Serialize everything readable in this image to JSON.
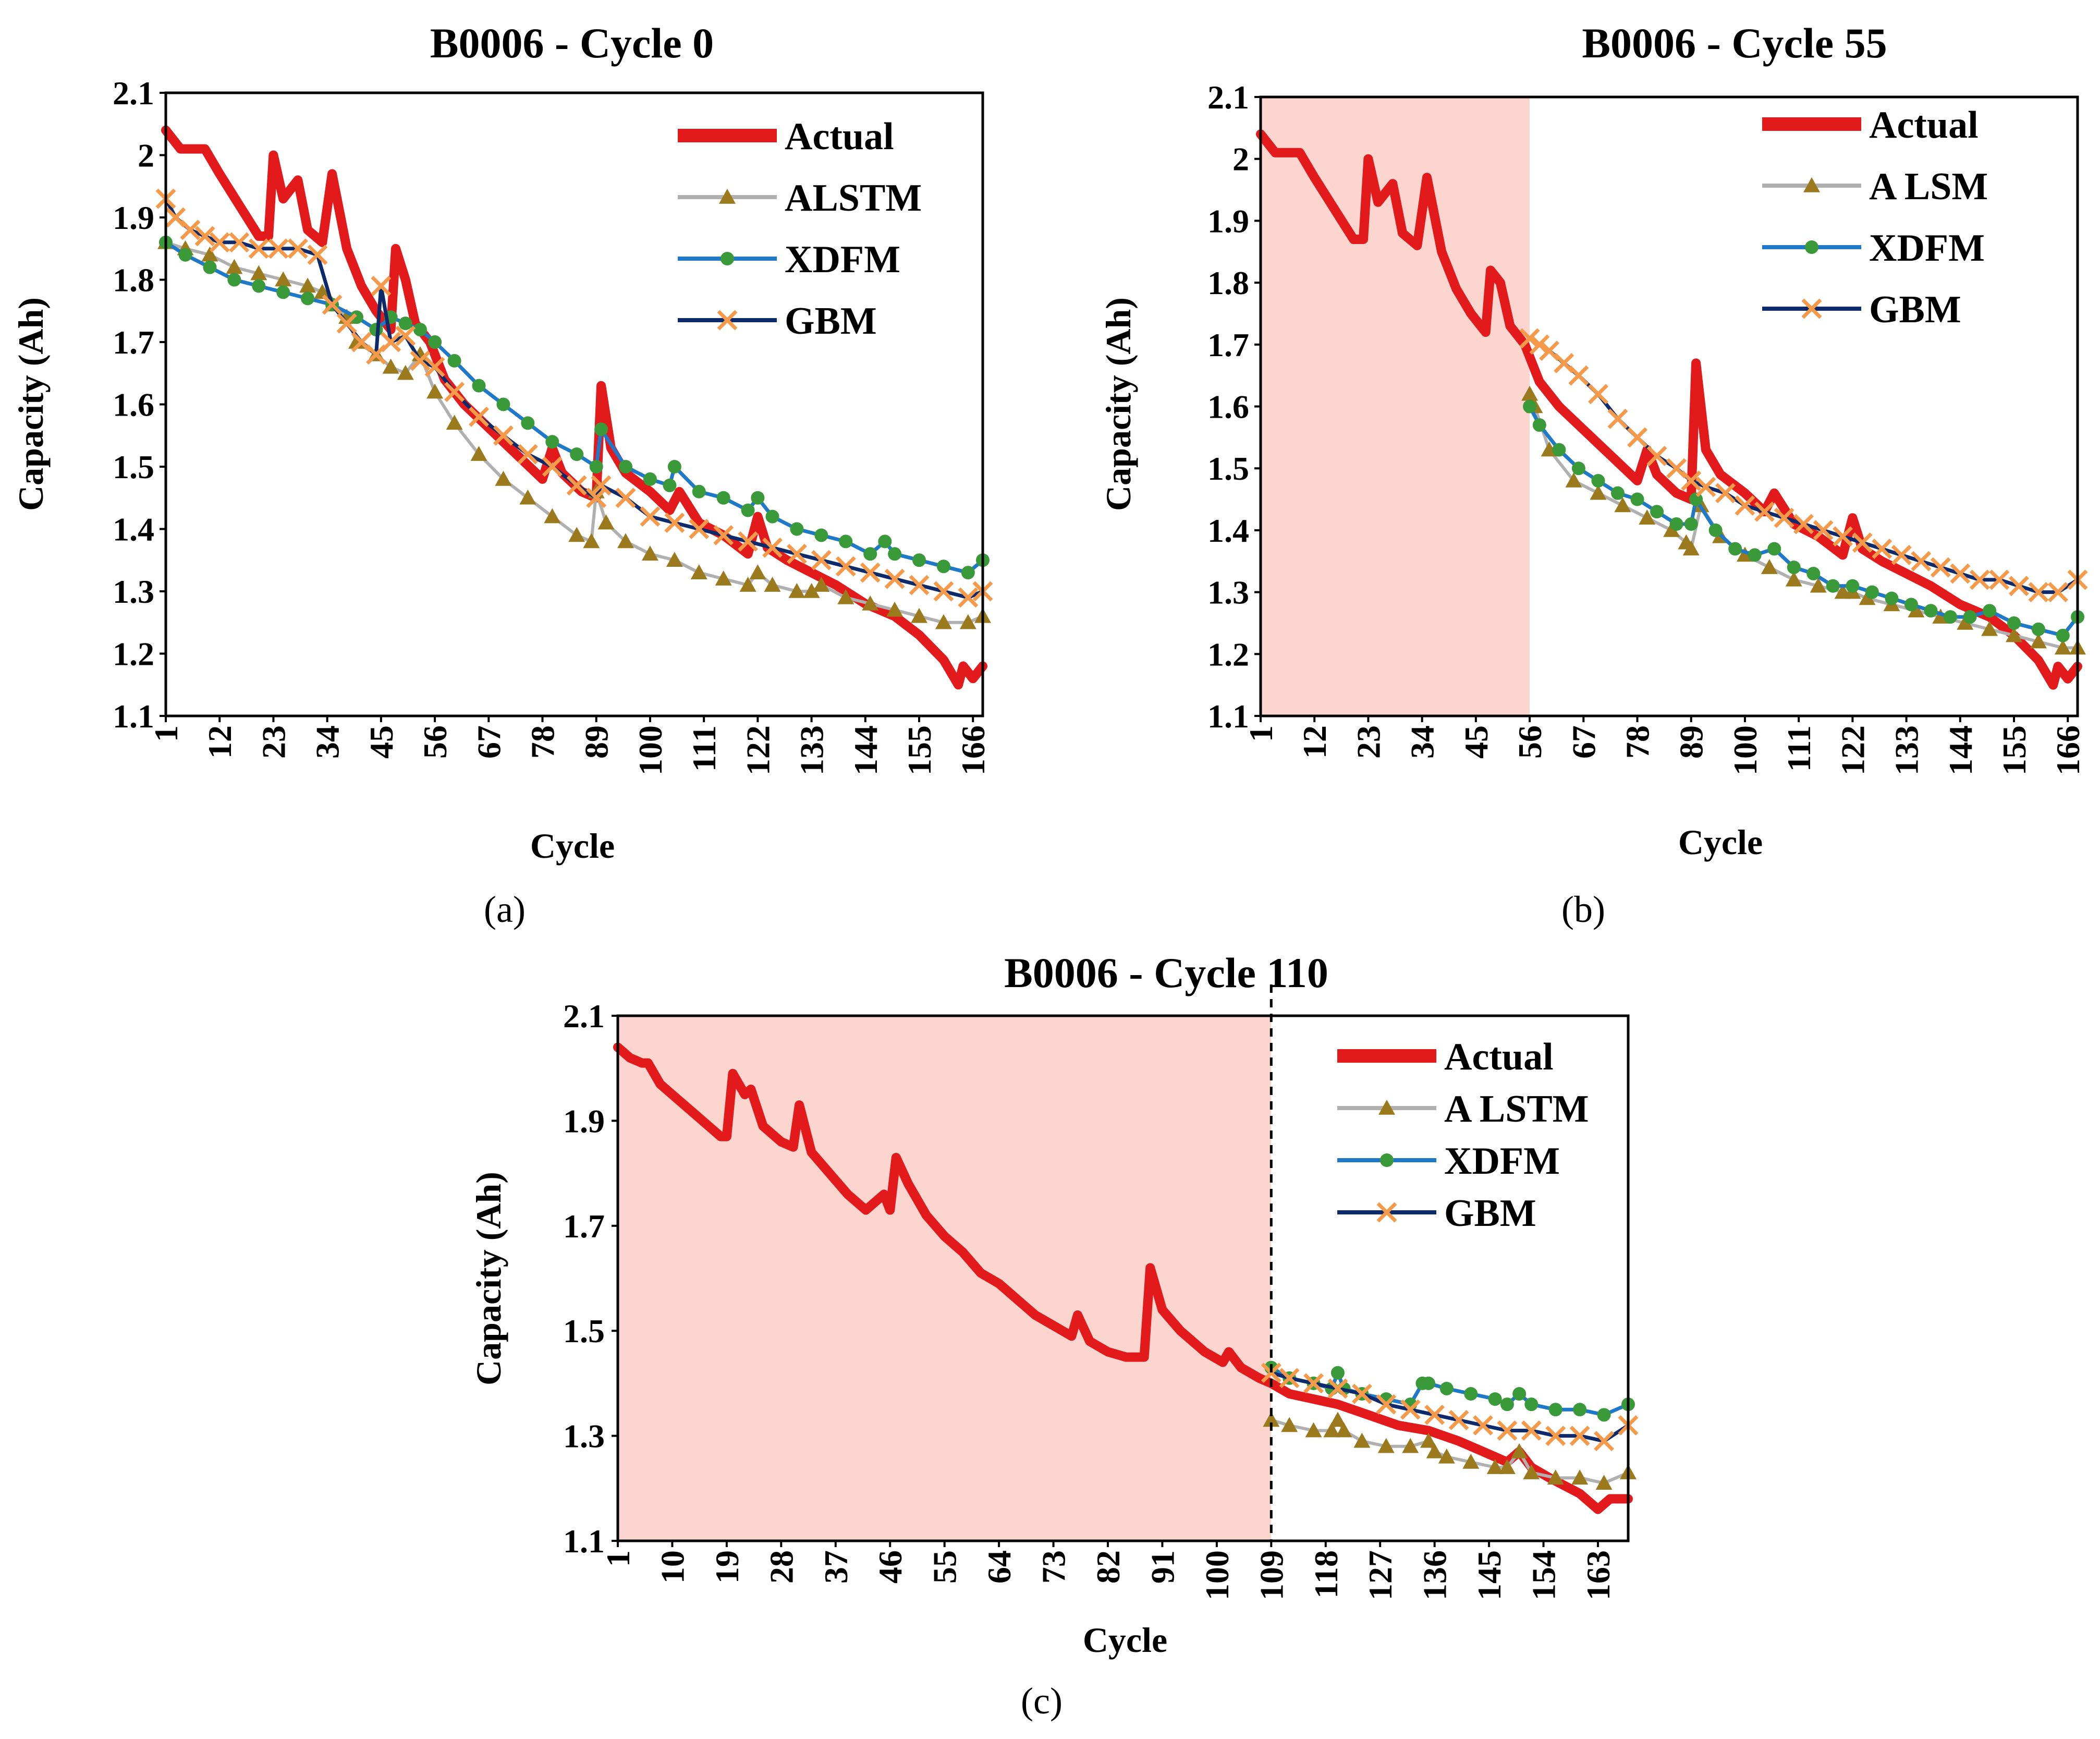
{
  "colors": {
    "Actual": "#e31a1c",
    "ALSTM": "#9a7a1c",
    "ALSTM_line": "#b0b0b0",
    "XDFM": "#3a9a3a",
    "XDFM_line": "#1f78c8",
    "GBM": "#f59a4a",
    "GBM_line": "#0d2a6b",
    "train_shade": "#fcd5cf"
  },
  "chart_data": [
    {
      "id": "a",
      "type": "line",
      "title": "B0006 - Cycle 0",
      "caption": "(a)",
      "xlabel": "Cycle",
      "ylabel": "Capacity (Ah)",
      "ylim": [
        1.1,
        2.1
      ],
      "xlim": [
        1,
        168
      ],
      "yticks": [
        "1.1",
        "1.2",
        "1.3",
        "1.4",
        "1.5",
        "1.6",
        "1.7",
        "1.8",
        "1.9",
        "2",
        "2.1"
      ],
      "xticks": [
        "1",
        "12",
        "23",
        "34",
        "45",
        "56",
        "67",
        "78",
        "89",
        "100",
        "111",
        "122",
        "133",
        "144",
        "155",
        "166"
      ],
      "train_end": null,
      "divider": null,
      "legend": [
        "Actual",
        "ALSTM",
        "XDFM",
        "GBM"
      ],
      "series": [
        {
          "name": "Actual",
          "x": [
            1,
            4,
            6,
            9,
            12,
            16,
            20,
            22,
            23,
            25,
            28,
            30,
            33,
            35,
            38,
            41,
            44,
            47,
            48,
            50,
            52,
            55,
            58,
            62,
            66,
            70,
            74,
            78,
            80,
            82,
            86,
            89,
            90,
            92,
            95,
            100,
            104,
            106,
            110,
            115,
            120,
            122,
            124,
            128,
            133,
            138,
            144,
            150,
            155,
            160,
            163,
            164,
            166,
            168
          ],
          "y": [
            2.04,
            2.01,
            2.01,
            2.01,
            1.97,
            1.92,
            1.87,
            1.87,
            2.0,
            1.93,
            1.96,
            1.88,
            1.86,
            1.97,
            1.85,
            1.79,
            1.75,
            1.72,
            1.85,
            1.8,
            1.73,
            1.7,
            1.64,
            1.6,
            1.57,
            1.54,
            1.51,
            1.48,
            1.53,
            1.49,
            1.46,
            1.45,
            1.63,
            1.53,
            1.49,
            1.46,
            1.43,
            1.46,
            1.41,
            1.39,
            1.36,
            1.42,
            1.37,
            1.35,
            1.33,
            1.31,
            1.28,
            1.26,
            1.23,
            1.19,
            1.15,
            1.18,
            1.16,
            1.18
          ]
        },
        {
          "name": "ALSTM",
          "x": [
            1,
            5,
            10,
            15,
            20,
            25,
            30,
            33,
            35,
            38,
            40,
            44,
            47,
            50,
            53,
            56,
            60,
            65,
            70,
            75,
            80,
            85,
            88,
            89,
            91,
            95,
            100,
            105,
            110,
            115,
            120,
            122,
            125,
            130,
            133,
            135,
            140,
            145,
            150,
            155,
            160,
            165,
            168
          ],
          "y": [
            1.86,
            1.85,
            1.84,
            1.82,
            1.81,
            1.8,
            1.79,
            1.78,
            1.76,
            1.74,
            1.7,
            1.68,
            1.66,
            1.65,
            1.68,
            1.62,
            1.57,
            1.52,
            1.48,
            1.45,
            1.42,
            1.39,
            1.38,
            1.46,
            1.41,
            1.38,
            1.36,
            1.35,
            1.33,
            1.32,
            1.31,
            1.33,
            1.31,
            1.3,
            1.3,
            1.31,
            1.29,
            1.28,
            1.27,
            1.26,
            1.25,
            1.25,
            1.26
          ]
        },
        {
          "name": "XDFM",
          "x": [
            1,
            5,
            10,
            15,
            20,
            25,
            30,
            35,
            40,
            44,
            47,
            50,
            53,
            56,
            60,
            65,
            70,
            75,
            80,
            85,
            89,
            90,
            95,
            100,
            104,
            105,
            110,
            115,
            120,
            122,
            125,
            130,
            135,
            140,
            145,
            148,
            150,
            155,
            160,
            165,
            168
          ],
          "y": [
            1.86,
            1.84,
            1.82,
            1.8,
            1.79,
            1.78,
            1.77,
            1.76,
            1.74,
            1.72,
            1.74,
            1.73,
            1.72,
            1.7,
            1.67,
            1.63,
            1.6,
            1.57,
            1.54,
            1.52,
            1.5,
            1.56,
            1.5,
            1.48,
            1.47,
            1.5,
            1.46,
            1.45,
            1.43,
            1.45,
            1.42,
            1.4,
            1.39,
            1.38,
            1.36,
            1.38,
            1.36,
            1.35,
            1.34,
            1.33,
            1.35
          ]
        },
        {
          "name": "GBM",
          "x": [
            1,
            3,
            6,
            9,
            12,
            16,
            20,
            24,
            28,
            32,
            35,
            38,
            41,
            44,
            45,
            47,
            50,
            53,
            56,
            60,
            65,
            70,
            75,
            80,
            85,
            89,
            90,
            95,
            100,
            105,
            110,
            115,
            120,
            125,
            130,
            135,
            140,
            145,
            150,
            155,
            160,
            165,
            168
          ],
          "y": [
            1.93,
            1.9,
            1.88,
            1.87,
            1.86,
            1.86,
            1.85,
            1.85,
            1.85,
            1.84,
            1.76,
            1.73,
            1.7,
            1.68,
            1.79,
            1.7,
            1.71,
            1.67,
            1.66,
            1.62,
            1.58,
            1.55,
            1.52,
            1.5,
            1.47,
            1.45,
            1.47,
            1.45,
            1.42,
            1.41,
            1.4,
            1.39,
            1.38,
            1.37,
            1.36,
            1.35,
            1.34,
            1.33,
            1.32,
            1.31,
            1.3,
            1.29,
            1.3
          ]
        }
      ]
    },
    {
      "id": "b",
      "type": "line",
      "title": "B0006 - Cycle 55",
      "caption": "(b)",
      "xlabel": "Cycle",
      "ylabel": "Capacity (Ah)",
      "ylim": [
        1.1,
        2.1
      ],
      "xlim": [
        1,
        168
      ],
      "yticks": [
        "1.1",
        "1.2",
        "1.3",
        "1.4",
        "1.5",
        "1.6",
        "1.7",
        "1.8",
        "1.9",
        "2",
        "2.1"
      ],
      "xticks": [
        "1",
        "12",
        "23",
        "34",
        "45",
        "56",
        "67",
        "78",
        "89",
        "100",
        "111",
        "122",
        "133",
        "144",
        "155",
        "166"
      ],
      "train_end": 56,
      "divider": null,
      "legend": [
        "Actual",
        "A LSM",
        "XDFM",
        "GBM"
      ],
      "series": [
        {
          "name": "Actual",
          "x": [
            1,
            4,
            6,
            9,
            12,
            16,
            20,
            22,
            23,
            25,
            28,
            30,
            33,
            35,
            38,
            41,
            44,
            47,
            48,
            50,
            52,
            55,
            58,
            62,
            66,
            70,
            74,
            78,
            80,
            82,
            86,
            89,
            90,
            92,
            95,
            100,
            104,
            106,
            110,
            115,
            120,
            122,
            124,
            128,
            133,
            138,
            144,
            150,
            155,
            160,
            163,
            164,
            166,
            168
          ],
          "y": [
            2.04,
            2.01,
            2.01,
            2.01,
            1.97,
            1.92,
            1.87,
            1.87,
            2.0,
            1.93,
            1.96,
            1.88,
            1.86,
            1.97,
            1.85,
            1.79,
            1.75,
            1.72,
            1.82,
            1.8,
            1.73,
            1.7,
            1.64,
            1.6,
            1.57,
            1.54,
            1.51,
            1.48,
            1.53,
            1.49,
            1.46,
            1.45,
            1.67,
            1.53,
            1.49,
            1.46,
            1.43,
            1.46,
            1.41,
            1.39,
            1.36,
            1.42,
            1.37,
            1.35,
            1.33,
            1.31,
            1.28,
            1.26,
            1.23,
            1.19,
            1.15,
            1.18,
            1.16,
            1.18
          ]
        },
        {
          "name": "A LSM",
          "x": [
            56,
            57,
            60,
            65,
            70,
            75,
            80,
            85,
            88,
            89,
            91,
            95,
            100,
            105,
            110,
            115,
            120,
            122,
            125,
            130,
            135,
            140,
            145,
            150,
            155,
            160,
            165,
            168
          ],
          "y": [
            1.62,
            1.6,
            1.53,
            1.48,
            1.46,
            1.44,
            1.42,
            1.4,
            1.38,
            1.37,
            1.44,
            1.39,
            1.36,
            1.34,
            1.32,
            1.31,
            1.3,
            1.3,
            1.29,
            1.28,
            1.27,
            1.26,
            1.25,
            1.24,
            1.23,
            1.22,
            1.21,
            1.21
          ]
        },
        {
          "name": "XDFM",
          "x": [
            56,
            58,
            62,
            66,
            70,
            74,
            78,
            82,
            86,
            89,
            90,
            94,
            98,
            102,
            106,
            110,
            114,
            118,
            122,
            126,
            130,
            134,
            138,
            142,
            146,
            150,
            155,
            160,
            165,
            168
          ],
          "y": [
            1.6,
            1.57,
            1.53,
            1.5,
            1.48,
            1.46,
            1.45,
            1.43,
            1.41,
            1.41,
            1.45,
            1.4,
            1.37,
            1.36,
            1.37,
            1.34,
            1.33,
            1.31,
            1.31,
            1.3,
            1.29,
            1.28,
            1.27,
            1.26,
            1.26,
            1.27,
            1.25,
            1.24,
            1.23,
            1.26
          ]
        },
        {
          "name": "GBM",
          "x": [
            56,
            58,
            60,
            63,
            66,
            70,
            74,
            78,
            82,
            86,
            89,
            92,
            96,
            100,
            104,
            108,
            112,
            116,
            120,
            124,
            128,
            132,
            136,
            140,
            144,
            148,
            152,
            156,
            160,
            164,
            168
          ],
          "y": [
            1.71,
            1.7,
            1.69,
            1.67,
            1.65,
            1.62,
            1.58,
            1.55,
            1.52,
            1.5,
            1.48,
            1.47,
            1.46,
            1.44,
            1.43,
            1.42,
            1.41,
            1.4,
            1.39,
            1.38,
            1.37,
            1.36,
            1.35,
            1.34,
            1.33,
            1.32,
            1.32,
            1.31,
            1.3,
            1.3,
            1.32
          ]
        }
      ]
    },
    {
      "id": "c",
      "type": "line",
      "title": "B0006 - Cycle 110",
      "caption": "(c)",
      "xlabel": "Cycle",
      "ylabel": "Capacity (Ah)",
      "ylim": [
        1.1,
        2.1
      ],
      "xlim": [
        1,
        168
      ],
      "yticks": [
        "1.1",
        "1.3",
        "1.5",
        "1.7",
        "1.9",
        "2.1"
      ],
      "xticks": [
        "1",
        "10",
        "19",
        "28",
        "37",
        "46",
        "55",
        "64",
        "73",
        "82",
        "91",
        "100",
        "109",
        "118",
        "127",
        "136",
        "145",
        "154",
        "163"
      ],
      "train_end": 109,
      "divider": 109,
      "legend": [
        "Actual",
        "A LSTM",
        "XDFM",
        "GBM"
      ],
      "series": [
        {
          "name": "Actual",
          "x": [
            1,
            3,
            5,
            6,
            8,
            10,
            14,
            18,
            19,
            20,
            22,
            23,
            25,
            28,
            30,
            31,
            33,
            36,
            39,
            42,
            45,
            46,
            47,
            49,
            52,
            55,
            58,
            61,
            64,
            67,
            70,
            73,
            76,
            77,
            79,
            82,
            85,
            88,
            89,
            91,
            94,
            98,
            101,
            102,
            104,
            107,
            109,
            112,
            116,
            120,
            125,
            130,
            135,
            140,
            144,
            148,
            150,
            152,
            155,
            160,
            163,
            165,
            168
          ],
          "y": [
            2.04,
            2.02,
            2.01,
            2.01,
            1.97,
            1.95,
            1.91,
            1.87,
            1.87,
            1.99,
            1.95,
            1.96,
            1.89,
            1.86,
            1.85,
            1.93,
            1.84,
            1.8,
            1.76,
            1.73,
            1.76,
            1.73,
            1.83,
            1.78,
            1.72,
            1.68,
            1.65,
            1.61,
            1.59,
            1.56,
            1.53,
            1.51,
            1.49,
            1.53,
            1.48,
            1.46,
            1.45,
            1.45,
            1.62,
            1.54,
            1.5,
            1.46,
            1.44,
            1.46,
            1.43,
            1.41,
            1.4,
            1.38,
            1.37,
            1.36,
            1.34,
            1.32,
            1.31,
            1.29,
            1.27,
            1.25,
            1.27,
            1.24,
            1.22,
            1.19,
            1.16,
            1.18,
            1.18
          ]
        },
        {
          "name": "A LSTM",
          "x": [
            109,
            112,
            116,
            119,
            120,
            121,
            124,
            128,
            132,
            135,
            136,
            138,
            142,
            146,
            148,
            150,
            152,
            156,
            160,
            164,
            168
          ],
          "y": [
            1.33,
            1.32,
            1.31,
            1.31,
            1.33,
            1.31,
            1.29,
            1.28,
            1.28,
            1.29,
            1.27,
            1.26,
            1.25,
            1.24,
            1.24,
            1.27,
            1.23,
            1.22,
            1.22,
            1.21,
            1.23
          ]
        },
        {
          "name": "XDFM",
          "x": [
            109,
            112,
            116,
            119,
            120,
            121,
            124,
            128,
            132,
            134,
            135,
            138,
            142,
            146,
            148,
            150,
            152,
            156,
            160,
            164,
            168
          ],
          "y": [
            1.43,
            1.41,
            1.4,
            1.39,
            1.42,
            1.39,
            1.38,
            1.37,
            1.36,
            1.4,
            1.4,
            1.39,
            1.38,
            1.37,
            1.36,
            1.38,
            1.36,
            1.35,
            1.35,
            1.34,
            1.36
          ]
        },
        {
          "name": "GBM",
          "x": [
            109,
            112,
            116,
            120,
            124,
            128,
            132,
            136,
            140,
            144,
            148,
            152,
            156,
            160,
            164,
            168
          ],
          "y": [
            1.42,
            1.41,
            1.4,
            1.39,
            1.38,
            1.36,
            1.35,
            1.34,
            1.33,
            1.32,
            1.31,
            1.31,
            1.3,
            1.3,
            1.29,
            1.32
          ]
        }
      ]
    }
  ]
}
